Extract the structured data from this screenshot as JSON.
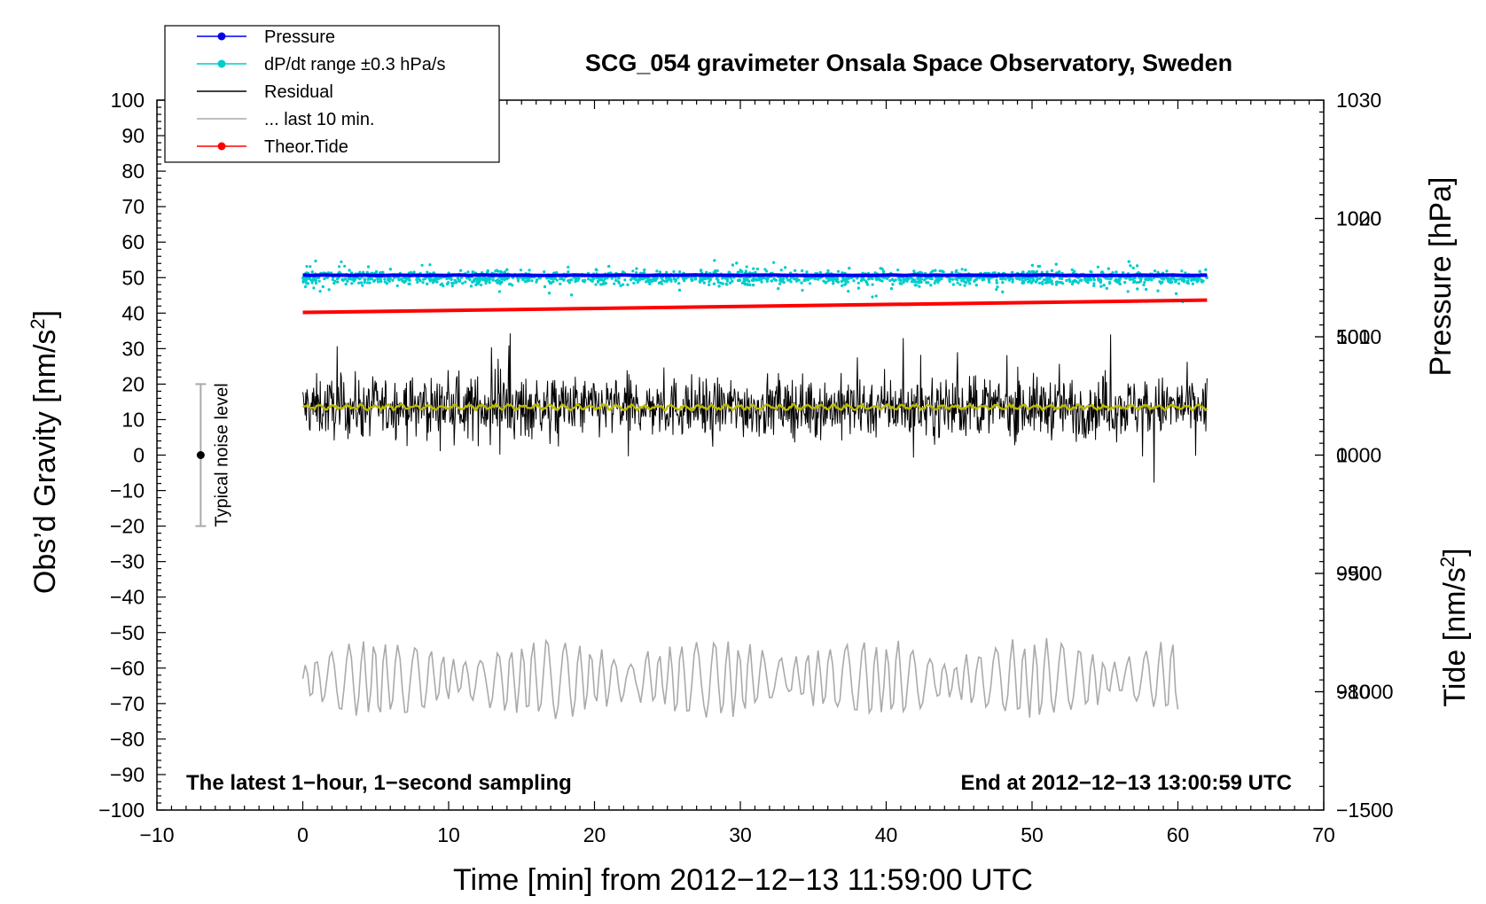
{
  "chart_data": {
    "type": "scatter",
    "title": "SCG_054 gravimeter Onsala Space Observatory, Sweden",
    "xlabel": "Time [min] from 2012−12−13 11:59:00 UTC",
    "ylabel_left": "Obs’d Gravity [nm/s²]",
    "ylabel_right_top": "Pressure [hPa]",
    "ylabel_right_bottom": "Tide [nm/s²]",
    "xlim": [
      -10,
      70
    ],
    "ylim_left": [
      -100,
      100
    ],
    "ylim_pressure": [
      970,
      1030
    ],
    "ylim_tide": [
      -1500,
      1500
    ],
    "x_ticks": [
      -10,
      0,
      10,
      20,
      30,
      40,
      50,
      60,
      70
    ],
    "x_tick_labels": [
      "−10",
      "0",
      "10",
      "20",
      "30",
      "40",
      "50",
      "60",
      "70"
    ],
    "y_left_ticks": [
      100,
      90,
      80,
      70,
      60,
      50,
      40,
      30,
      20,
      10,
      0,
      -10,
      -20,
      -30,
      -40,
      -50,
      -60,
      -70,
      -80,
      -90,
      -100
    ],
    "y_left_tick_labels": [
      "100",
      "90",
      "80",
      "70",
      "60",
      "50",
      "40",
      "30",
      "20",
      "10",
      "0",
      "−10",
      "−20",
      "−30",
      "−40",
      "−50",
      "−60",
      "−70",
      "−80",
      "−90",
      "−100"
    ],
    "y_pressure_ticks": [
      1030,
      1020,
      1010,
      1000,
      990,
      980
    ],
    "y_pressure_tick_labels": [
      "1030",
      "1020",
      "1010",
      "1000",
      "990",
      "980"
    ],
    "y_tide_ticks": [
      1000,
      500,
      0,
      -500,
      -1000,
      -1500
    ],
    "y_tide_tick_labels": [
      "1000",
      "500",
      "0",
      "−500",
      "−1000",
      "−1500"
    ],
    "legend": {
      "placement": "top-left",
      "entries": [
        {
          "label": "Pressure",
          "color": "#0000ee",
          "marker": true
        },
        {
          "label": "dP/dt range ±0.3 hPa/s",
          "color": "#00cccc",
          "marker": true
        },
        {
          "label": "Residual",
          "color": "#000000",
          "marker": false
        },
        {
          "label": "... last 10 min.",
          "color": "#aaaaaa",
          "marker": false
        },
        {
          "label": "Theor.Tide",
          "color": "#ff0000",
          "marker": true
        }
      ]
    },
    "series": [
      {
        "name": "Pressure",
        "axis": "pressure",
        "color": "#0000ee",
        "x_range": [
          0,
          62
        ],
        "value": 1015.2
      },
      {
        "name": "dP/dt range ±0.3 hPa/s",
        "axis": "left",
        "color": "#00cccc",
        "x_range": [
          0,
          62
        ],
        "center": 50,
        "spread": 8
      },
      {
        "name": "Residual",
        "axis": "left",
        "color": "#000000",
        "x_range": [
          0,
          62
        ],
        "center": 13.5,
        "spread": 15
      },
      {
        "name": "Residual smoothed",
        "axis": "left",
        "color": "#bbbb00",
        "x_range": [
          0,
          62
        ],
        "center": 13.5
      },
      {
        "name": "... last 10 min.",
        "axis": "left",
        "color": "#aaaaaa",
        "x_range": [
          0,
          60
        ],
        "center": -63,
        "spread": 14
      },
      {
        "name": "Theor.Tide",
        "axis": "tide",
        "color": "#ff0000",
        "x_range": [
          0,
          62
        ],
        "start": 603,
        "end": 655
      }
    ],
    "noise_level": {
      "label": "Typical noise level",
      "x": -7,
      "center": 0,
      "upper": 20,
      "lower": -20
    },
    "annotations": {
      "left": "The latest 1−hour, 1−second sampling",
      "right": "End at 2012−12−13 13:00:59 UTC"
    }
  }
}
